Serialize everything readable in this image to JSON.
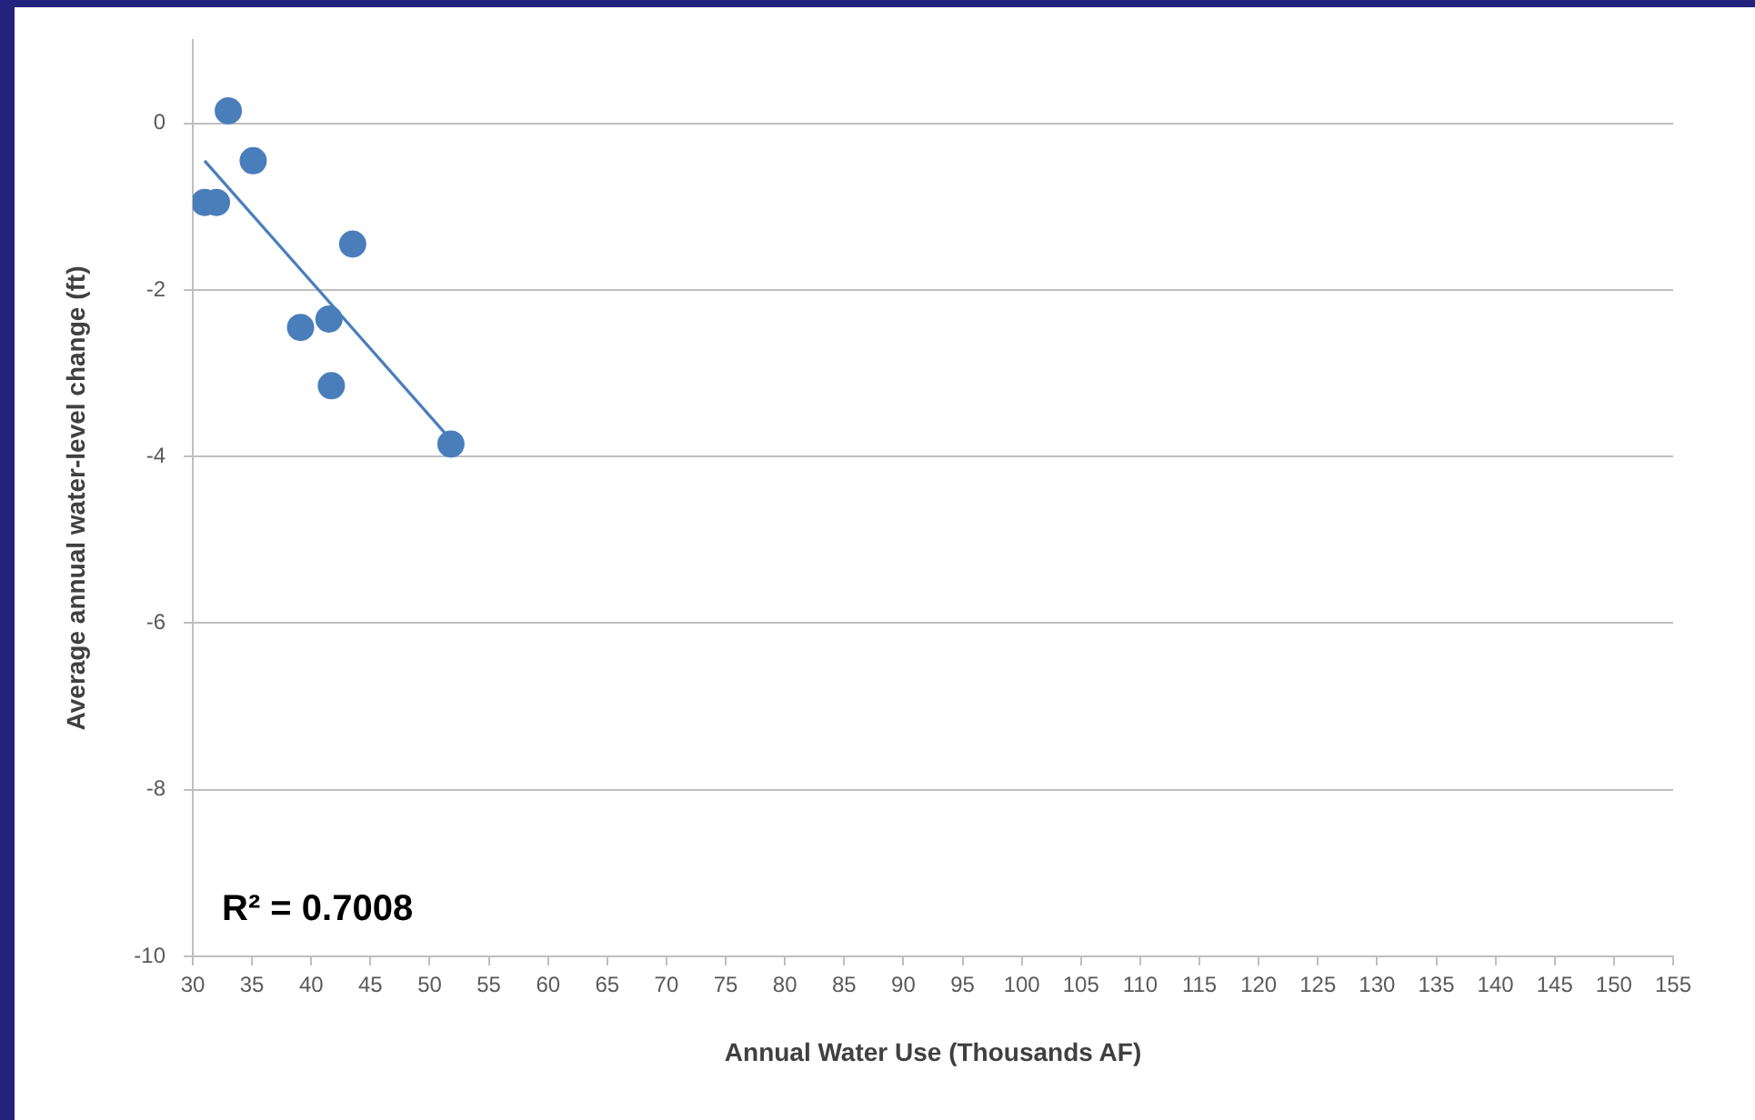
{
  "chart_data": {
    "type": "scatter",
    "xlabel": "Annual Water Use (Thousands AF)",
    "ylabel": "Average annual water-level change (ft)",
    "annotations": [
      "R² = 0.7008"
    ],
    "x": [
      33.0,
      35.1,
      31.0,
      32.0,
      43.5,
      39.1,
      41.5,
      41.7,
      51.8
    ],
    "series": [
      {
        "color": "#4a7ebb",
        "values": [
          0.15,
          -0.45,
          -0.95,
          -0.95,
          -1.45,
          -2.45,
          -2.35,
          -3.15,
          -3.85
        ]
      },
      {
        "type": "line",
        "marker": "none",
        "color": "#4a7ebb",
        "x": [
          31.0,
          51.8
        ],
        "values": [
          -0.45,
          -3.8
        ]
      }
    ],
    "xlim": [
      30,
      155
    ],
    "xticks": [
      30,
      35,
      40,
      45,
      50,
      55,
      60,
      65,
      70,
      75,
      80,
      85,
      90,
      95,
      100,
      105,
      110,
      115,
      120,
      125,
      130,
      135,
      140,
      145,
      150,
      155
    ],
    "ylim": [
      -10,
      1
    ],
    "yticks": [
      -10,
      -8,
      -6,
      -4,
      -2,
      0
    ],
    "grid": "y",
    "legend": false,
    "marker": "circle"
  }
}
